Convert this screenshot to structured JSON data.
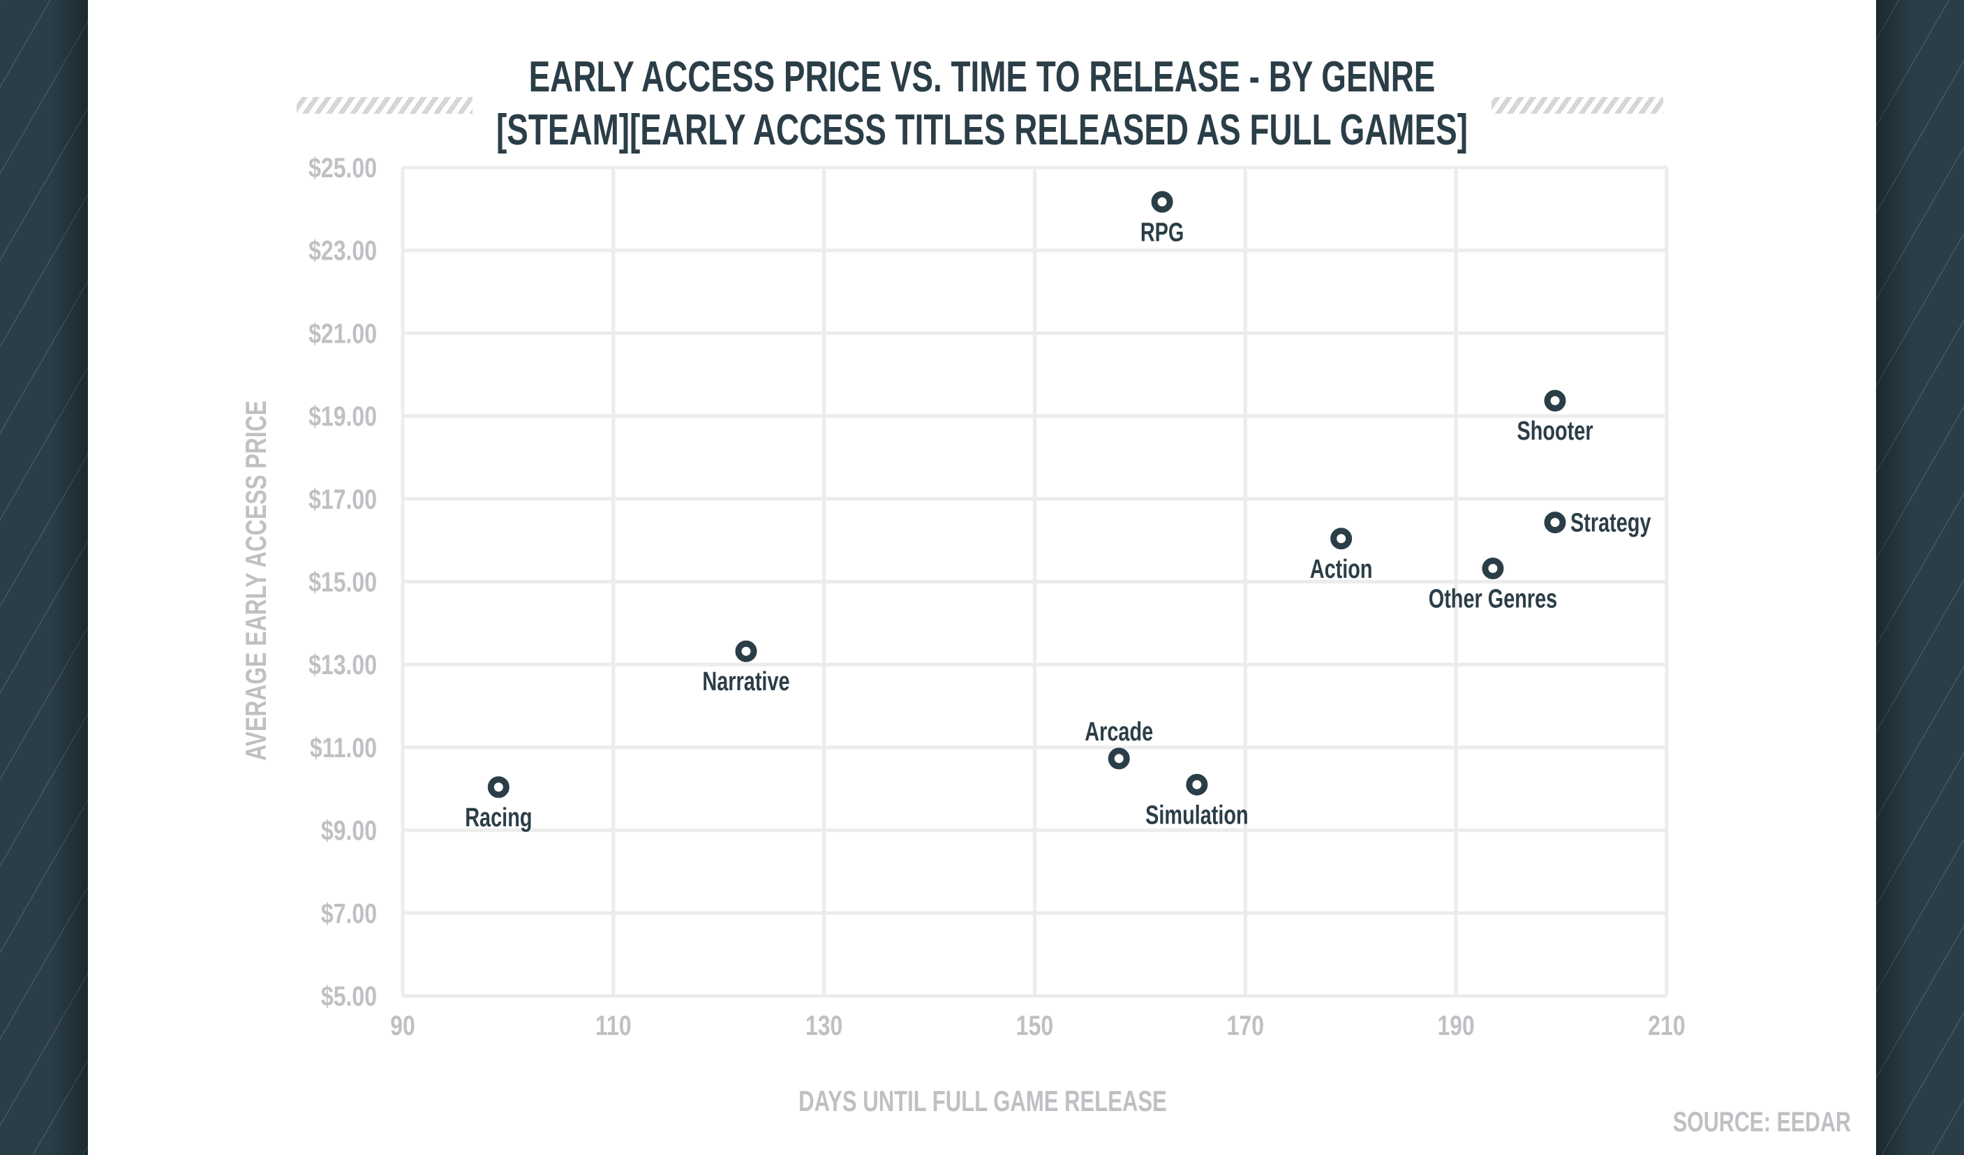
{
  "colors": {
    "panel": "#2b3e48",
    "text_dark": "#2b3e48",
    "text_muted": "#bfc0c4",
    "grid": "#ececec",
    "hatch": "#d6d6d6"
  },
  "chart_data": {
    "type": "scatter",
    "title": "EARLY ACCESS PRICE VS. TIME TO RELEASE - BY GENRE",
    "subtitle": "[STEAM][EARLY ACCESS TITLES RELEASED AS FULL GAMES]",
    "xlabel": "DAYS UNTIL FULL GAME RELEASE",
    "ylabel": "AVERAGE EARLY ACCESS PRICE",
    "xlim": [
      90,
      210
    ],
    "ylim": [
      5,
      25
    ],
    "xticks": [
      90,
      110,
      130,
      150,
      170,
      190,
      210
    ],
    "yticks": [
      5,
      7,
      9,
      11,
      13,
      15,
      17,
      19,
      21,
      23,
      25
    ],
    "xtick_labels": [
      "90",
      "110",
      "130",
      "150",
      "170",
      "190",
      "210"
    ],
    "ytick_labels": [
      "$5.00",
      "$7.00",
      "$9.00",
      "$11.00",
      "$13.00",
      "$15.00",
      "$17.00",
      "$19.00",
      "$21.00",
      "$23.00",
      "$25.00"
    ],
    "grid": true,
    "legend": "none",
    "points": [
      {
        "label": "RPG",
        "x": 162.1,
        "y": 24.17,
        "label_position": "below"
      },
      {
        "label": "Shooter",
        "x": 199.4,
        "y": 19.37,
        "label_position": "below"
      },
      {
        "label": "Strategy",
        "x": 199.4,
        "y": 16.43,
        "label_position": "right"
      },
      {
        "label": "Action",
        "x": 179.1,
        "y": 16.04,
        "label_position": "below"
      },
      {
        "label": "Other Genres",
        "x": 193.5,
        "y": 15.32,
        "label_position": "below"
      },
      {
        "label": "Narrative",
        "x": 122.6,
        "y": 13.32,
        "label_position": "below"
      },
      {
        "label": "Arcade",
        "x": 158.0,
        "y": 10.73,
        "label_position": "above"
      },
      {
        "label": "Simulation",
        "x": 165.4,
        "y": 10.1,
        "label_position": "below"
      },
      {
        "label": "Racing",
        "x": 99.1,
        "y": 10.04,
        "label_position": "below"
      }
    ],
    "source": "SOURCE: EEDAR"
  }
}
